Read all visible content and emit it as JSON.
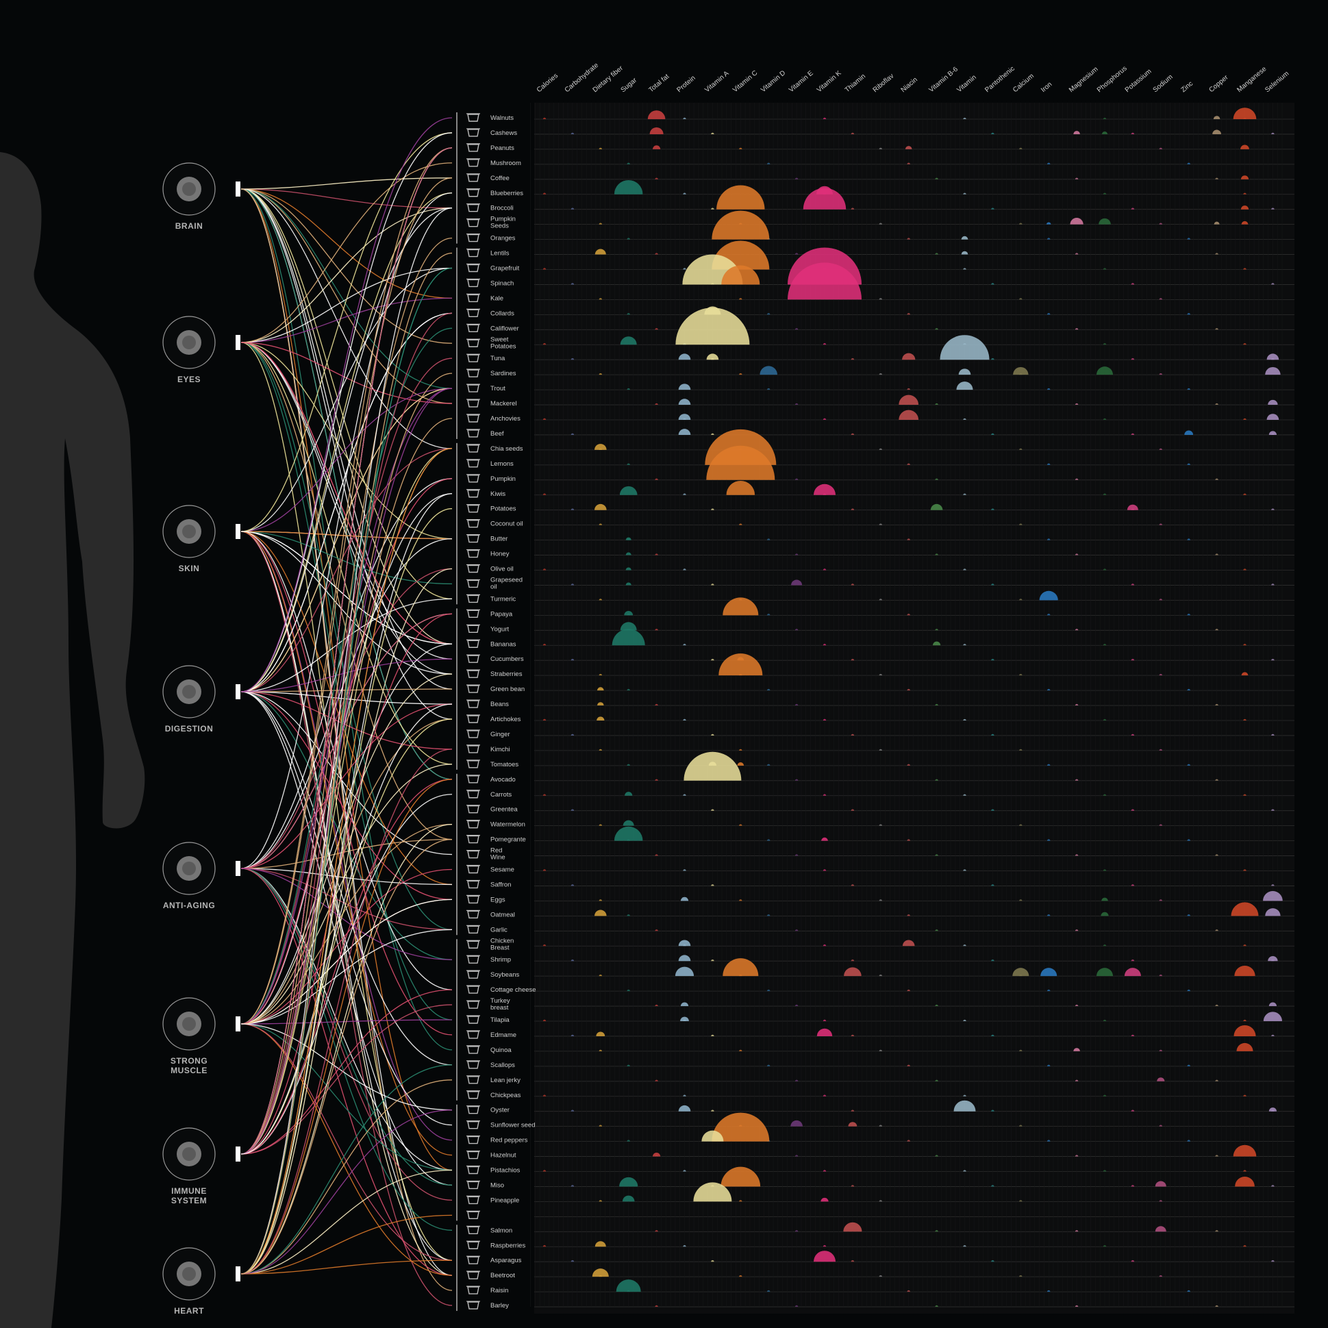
{
  "colors": {
    "background": "#050708",
    "silhouette": "#2a2a2a",
    "gridline": "#2e2e2e",
    "label": "#cfcfcf",
    "organ_label": "#b5b5b5",
    "icon_ring": "#9a9a9a"
  },
  "organs": [
    {
      "label": "BRAIN",
      "icon": "brain-icon"
    },
    {
      "label": "EYES",
      "icon": "eye-icon"
    },
    {
      "label": "SKIN",
      "icon": "skin-icon"
    },
    {
      "label": "DIGESTION",
      "icon": "stomach-icon"
    },
    {
      "label": "ANTI-AGING",
      "icon": "face-icon"
    },
    {
      "label": "STRONG\nMUSCLE",
      "icon": "muscle-icon"
    },
    {
      "label": "IMMUNE\nSYSTEM",
      "icon": "immune-cell-icon"
    },
    {
      "label": "HEART",
      "icon": "heart-icon"
    }
  ],
  "chart_data": {
    "type": "bubble-matrix",
    "nutrients": [
      "Calories",
      "Carbohydrate",
      "Dietary fiber",
      "Sugar",
      "Total fat",
      "Protein",
      "Vitamin A",
      "Vitamin C",
      "Vitamin D",
      "Vitamin E",
      "Vitamin K",
      "Thiamin",
      "Riboflav",
      "Niacin",
      "Vitamin B-6",
      "Vitamin",
      "Pantothenic",
      "Calcium",
      "Iron",
      "Magnesium",
      "Phosphorus",
      "Potassium",
      "Sodium",
      "Zinc",
      "Copper",
      "Manganese",
      "Selenium"
    ],
    "nutrient_colors": [
      "#c0392b",
      "#5d6b9e",
      "#d4a03a",
      "#1f7a68",
      "#c84040",
      "#8fb4cc",
      "#e8de9a",
      "#de7a2a",
      "#2e6a96",
      "#6e3a7a",
      "#e0307a",
      "#c05050",
      "#8a8a8a",
      "#c05050",
      "#4a8a4a",
      "#9ab8c8",
      "#2a8a8a",
      "#807a50",
      "#2a7ac0",
      "#d47aa0",
      "#2a6a3a",
      "#d04080",
      "#b05080",
      "#2a7ac0",
      "#a89070",
      "#d04828",
      "#a890c0"
    ],
    "foods": [
      "Walnuts",
      "Cashews",
      "Peanuts",
      "Mushroom",
      "Coffee",
      "Blueberries",
      "Broccoli",
      "Pumpkin\nSeeds",
      "Oranges",
      "Lentils",
      "Grapefruit",
      "Spinach",
      "Kale",
      "Collards",
      "Califlower",
      "Sweet\nPotatoes",
      "Tuna",
      "Sardines",
      "Trout",
      "Mackerel",
      "Anchovies",
      "Beef",
      "Chia seeds",
      "Lemons",
      "Pumpkin",
      "Kiwis",
      "Potatoes",
      "Coconut oil",
      "Butter",
      "Honey",
      "Olive oil",
      "Grapeseed\noil",
      "Turmeric",
      "Papaya",
      "Yogurt",
      "Bananas",
      "Cucumbers",
      "Straberries",
      "Green bean",
      "Beans",
      "Artichokes",
      "Ginger",
      "Kimchi",
      "Tomatoes",
      "Avocado",
      "Carrots",
      "Greentea",
      "Watermelon",
      "Pomegrante",
      "Red\nWine",
      "Sesame",
      "Saffron",
      "Eggs",
      "Oatmeal",
      "Garlic",
      "Chicken\nBreast",
      "Shrimp",
      "Soybeans",
      "Cottage cheese",
      "Turkey\nbreast",
      "Tilapia",
      "Edmame",
      "Quinoa",
      "Scallops",
      "Lean jerky",
      "Chickpeas",
      "Oyster",
      "Sunflower seed",
      "Red peppers",
      "Hazelnut",
      "Pistachios",
      "Miso",
      "Pineapple",
      "",
      "Salmon",
      "Raspberries",
      "Asparagus",
      "Beetroot",
      "Raisin",
      "Barley"
    ],
    "organ_food_groups": [
      {
        "organ": "BRAIN",
        "foods": [
          0,
          8
        ]
      },
      {
        "organ": "EYES",
        "foods": [
          9,
          21
        ]
      },
      {
        "organ": "SKIN",
        "foods": [
          22,
          32
        ]
      },
      {
        "organ": "DIGESTION",
        "foods": [
          33,
          43
        ]
      },
      {
        "organ": "ANTI-AGING",
        "foods": [
          44,
          54
        ]
      },
      {
        "organ": "STRONG MUSCLE",
        "foods": [
          55,
          65
        ]
      },
      {
        "organ": "IMMUNE SYSTEM",
        "foods": [
          66,
          73
        ]
      },
      {
        "organ": "HEART",
        "foods": [
          74,
          79
        ]
      }
    ],
    "values_scale": [
      0,
      1
    ],
    "bubbles": [
      {
        "food": 0,
        "nutrient": 4,
        "value": 0.32
      },
      {
        "food": 0,
        "nutrient": 25,
        "value": 0.42
      },
      {
        "food": 0,
        "nutrient": 24,
        "value": 0.12
      },
      {
        "food": 1,
        "nutrient": 4,
        "value": 0.25
      },
      {
        "food": 1,
        "nutrient": 24,
        "value": 0.16
      },
      {
        "food": 1,
        "nutrient": 19,
        "value": 0.12
      },
      {
        "food": 1,
        "nutrient": 20,
        "value": 0.1
      },
      {
        "food": 2,
        "nutrient": 4,
        "value": 0.14
      },
      {
        "food": 2,
        "nutrient": 25,
        "value": 0.16
      },
      {
        "food": 2,
        "nutrient": 13,
        "value": 0.12
      },
      {
        "food": 4,
        "nutrient": 25,
        "value": 0.14
      },
      {
        "food": 5,
        "nutrient": 3,
        "value": 0.52
      },
      {
        "food": 5,
        "nutrient": 10,
        "value": 0.3
      },
      {
        "food": 6,
        "nutrient": 7,
        "value": 0.88
      },
      {
        "food": 6,
        "nutrient": 10,
        "value": 0.78
      },
      {
        "food": 6,
        "nutrient": 25,
        "value": 0.14
      },
      {
        "food": 7,
        "nutrient": 19,
        "value": 0.24
      },
      {
        "food": 7,
        "nutrient": 20,
        "value": 0.22
      },
      {
        "food": 7,
        "nutrient": 25,
        "value": 0.12
      },
      {
        "food": 7,
        "nutrient": 24,
        "value": 0.1
      },
      {
        "food": 7,
        "nutrient": 18,
        "value": 0.08
      },
      {
        "food": 8,
        "nutrient": 7,
        "value": 1.05
      },
      {
        "food": 8,
        "nutrient": 15,
        "value": 0.12
      },
      {
        "food": 9,
        "nutrient": 2,
        "value": 0.2
      },
      {
        "food": 9,
        "nutrient": 15,
        "value": 0.12
      },
      {
        "food": 10,
        "nutrient": 7,
        "value": 1.05
      },
      {
        "food": 11,
        "nutrient": 6,
        "value": 1.1
      },
      {
        "food": 11,
        "nutrient": 7,
        "value": 0.7
      },
      {
        "food": 11,
        "nutrient": 10,
        "value": 1.35
      },
      {
        "food": 12,
        "nutrient": 10,
        "value": 1.35
      },
      {
        "food": 13,
        "nutrient": 6,
        "value": 0.3
      },
      {
        "food": 15,
        "nutrient": 6,
        "value": 1.35
      },
      {
        "food": 15,
        "nutrient": 3,
        "value": 0.3
      },
      {
        "food": 16,
        "nutrient": 15,
        "value": 0.9
      },
      {
        "food": 16,
        "nutrient": 5,
        "value": 0.22
      },
      {
        "food": 16,
        "nutrient": 6,
        "value": 0.22
      },
      {
        "food": 16,
        "nutrient": 13,
        "value": 0.24
      },
      {
        "food": 16,
        "nutrient": 26,
        "value": 0.22
      },
      {
        "food": 17,
        "nutrient": 8,
        "value": 0.32
      },
      {
        "food": 17,
        "nutrient": 17,
        "value": 0.28
      },
      {
        "food": 17,
        "nutrient": 20,
        "value": 0.3
      },
      {
        "food": 17,
        "nutrient": 15,
        "value": 0.22
      },
      {
        "food": 17,
        "nutrient": 26,
        "value": 0.28
      },
      {
        "food": 18,
        "nutrient": 5,
        "value": 0.22
      },
      {
        "food": 18,
        "nutrient": 15,
        "value": 0.3
      },
      {
        "food": 19,
        "nutrient": 5,
        "value": 0.22
      },
      {
        "food": 19,
        "nutrient": 13,
        "value": 0.36
      },
      {
        "food": 19,
        "nutrient": 26,
        "value": 0.18
      },
      {
        "food": 20,
        "nutrient": 5,
        "value": 0.22
      },
      {
        "food": 20,
        "nutrient": 13,
        "value": 0.36
      },
      {
        "food": 20,
        "nutrient": 26,
        "value": 0.22
      },
      {
        "food": 21,
        "nutrient": 5,
        "value": 0.22
      },
      {
        "food": 21,
        "nutrient": 23,
        "value": 0.16
      },
      {
        "food": 21,
        "nutrient": 26,
        "value": 0.14
      },
      {
        "food": 22,
        "nutrient": 2,
        "value": 0.22
      },
      {
        "food": 23,
        "nutrient": 7,
        "value": 1.3
      },
      {
        "food": 24,
        "nutrient": 7,
        "value": 1.25
      },
      {
        "food": 25,
        "nutrient": 3,
        "value": 0.32
      },
      {
        "food": 25,
        "nutrient": 10,
        "value": 0.4
      },
      {
        "food": 25,
        "nutrient": 7,
        "value": 0.52
      },
      {
        "food": 26,
        "nutrient": 2,
        "value": 0.22
      },
      {
        "food": 26,
        "nutrient": 14,
        "value": 0.22
      },
      {
        "food": 26,
        "nutrient": 21,
        "value": 0.2
      },
      {
        "food": 28,
        "nutrient": 3,
        "value": 0.1
      },
      {
        "food": 29,
        "nutrient": 3,
        "value": 0.1
      },
      {
        "food": 30,
        "nutrient": 3,
        "value": 0.1
      },
      {
        "food": 31,
        "nutrient": 3,
        "value": 0.1
      },
      {
        "food": 31,
        "nutrient": 9,
        "value": 0.2
      },
      {
        "food": 32,
        "nutrient": 18,
        "value": 0.34
      },
      {
        "food": 33,
        "nutrient": 7,
        "value": 0.65
      },
      {
        "food": 33,
        "nutrient": 3,
        "value": 0.16
      },
      {
        "food": 34,
        "nutrient": 3,
        "value": 0.3
      },
      {
        "food": 35,
        "nutrient": 3,
        "value": 0.6
      },
      {
        "food": 35,
        "nutrient": 14,
        "value": 0.14
      },
      {
        "food": 36,
        "nutrient": 7,
        "value": 0.12
      },
      {
        "food": 37,
        "nutrient": 7,
        "value": 0.8
      },
      {
        "food": 37,
        "nutrient": 25,
        "value": 0.12
      },
      {
        "food": 38,
        "nutrient": 2,
        "value": 0.12
      },
      {
        "food": 39,
        "nutrient": 2,
        "value": 0.12
      },
      {
        "food": 40,
        "nutrient": 2,
        "value": 0.14
      },
      {
        "food": 43,
        "nutrient": 6,
        "value": 0.14
      },
      {
        "food": 43,
        "nutrient": 7,
        "value": 0.12
      },
      {
        "food": 44,
        "nutrient": 6,
        "value": 1.05
      },
      {
        "food": 45,
        "nutrient": 3,
        "value": 0.14
      },
      {
        "food": 47,
        "nutrient": 3,
        "value": 0.2
      },
      {
        "food": 48,
        "nutrient": 3,
        "value": 0.52
      },
      {
        "food": 48,
        "nutrient": 10,
        "value": 0.12
      },
      {
        "food": 52,
        "nutrient": 5,
        "value": 0.14
      },
      {
        "food": 52,
        "nutrient": 20,
        "value": 0.12
      },
      {
        "food": 52,
        "nutrient": 26,
        "value": 0.36
      },
      {
        "food": 53,
        "nutrient": 2,
        "value": 0.22
      },
      {
        "food": 53,
        "nutrient": 25,
        "value": 0.5
      },
      {
        "food": 53,
        "nutrient": 26,
        "value": 0.28
      },
      {
        "food": 53,
        "nutrient": 20,
        "value": 0.14
      },
      {
        "food": 55,
        "nutrient": 5,
        "value": 0.22
      },
      {
        "food": 55,
        "nutrient": 13,
        "value": 0.22
      },
      {
        "food": 56,
        "nutrient": 5,
        "value": 0.22
      },
      {
        "food": 56,
        "nutrient": 26,
        "value": 0.18
      },
      {
        "food": 57,
        "nutrient": 7,
        "value": 0.65
      },
      {
        "food": 57,
        "nutrient": 5,
        "value": 0.34
      },
      {
        "food": 57,
        "nutrient": 25,
        "value": 0.38
      },
      {
        "food": 57,
        "nutrient": 11,
        "value": 0.32
      },
      {
        "food": 57,
        "nutrient": 17,
        "value": 0.3
      },
      {
        "food": 57,
        "nutrient": 18,
        "value": 0.3
      },
      {
        "food": 57,
        "nutrient": 20,
        "value": 0.3
      },
      {
        "food": 57,
        "nutrient": 21,
        "value": 0.3
      },
      {
        "food": 59,
        "nutrient": 5,
        "value": 0.14
      },
      {
        "food": 59,
        "nutrient": 26,
        "value": 0.14
      },
      {
        "food": 60,
        "nutrient": 5,
        "value": 0.16
      },
      {
        "food": 60,
        "nutrient": 26,
        "value": 0.34
      },
      {
        "food": 61,
        "nutrient": 10,
        "value": 0.28
      },
      {
        "food": 61,
        "nutrient": 25,
        "value": 0.4
      },
      {
        "food": 61,
        "nutrient": 2,
        "value": 0.16
      },
      {
        "food": 62,
        "nutrient": 25,
        "value": 0.3
      },
      {
        "food": 62,
        "nutrient": 19,
        "value": 0.12
      },
      {
        "food": 64,
        "nutrient": 22,
        "value": 0.14
      },
      {
        "food": 66,
        "nutrient": 15,
        "value": 0.4
      },
      {
        "food": 66,
        "nutrient": 5,
        "value": 0.22
      },
      {
        "food": 66,
        "nutrient": 26,
        "value": 0.14
      },
      {
        "food": 67,
        "nutrient": 9,
        "value": 0.22
      },
      {
        "food": 67,
        "nutrient": 11,
        "value": 0.16
      },
      {
        "food": 68,
        "nutrient": 7,
        "value": 1.05
      },
      {
        "food": 68,
        "nutrient": 6,
        "value": 0.4
      },
      {
        "food": 69,
        "nutrient": 25,
        "value": 0.42
      },
      {
        "food": 69,
        "nutrient": 4,
        "value": 0.14
      },
      {
        "food": 71,
        "nutrient": 7,
        "value": 0.72
      },
      {
        "food": 71,
        "nutrient": 3,
        "value": 0.34
      },
      {
        "food": 71,
        "nutrient": 25,
        "value": 0.36
      },
      {
        "food": 71,
        "nutrient": 22,
        "value": 0.2
      },
      {
        "food": 72,
        "nutrient": 6,
        "value": 0.7
      },
      {
        "food": 72,
        "nutrient": 3,
        "value": 0.22
      },
      {
        "food": 72,
        "nutrient": 10,
        "value": 0.14
      },
      {
        "food": 74,
        "nutrient": 11,
        "value": 0.34
      },
      {
        "food": 74,
        "nutrient": 22,
        "value": 0.2
      },
      {
        "food": 75,
        "nutrient": 2,
        "value": 0.2
      },
      {
        "food": 76,
        "nutrient": 10,
        "value": 0.4
      },
      {
        "food": 77,
        "nutrient": 2,
        "value": 0.3
      },
      {
        "food": 78,
        "nutrient": 3,
        "value": 0.45
      }
    ]
  }
}
